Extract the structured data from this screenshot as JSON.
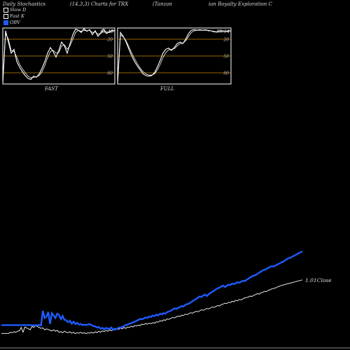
{
  "header": {
    "left": "Daily Stochastics",
    "mid": "(14,3,3) Charts for TRX",
    "right": "(Tanzan",
    "far_right": "ian  Royalty Exploration  C"
  },
  "legend": [
    {
      "label": "Slow D",
      "color": "#ffffff"
    },
    {
      "label": "Fast K",
      "color": "#ffffff"
    },
    {
      "label": "OBV",
      "color": "#1e5bff"
    }
  ],
  "panels": [
    {
      "name": "FAST",
      "label": "FAST",
      "last_value": "95.49"
    },
    {
      "name": "FULL",
      "label": "FULL",
      "last_value": "95.14"
    }
  ],
  "bottom": {
    "close_label": "1.01Close"
  },
  "colors": {
    "grid": "#c8860a",
    "obv": "#1e5bff",
    "price": "#ffffff"
  },
  "chart_data": [
    {
      "type": "line",
      "name": "fast-stochastics",
      "ylim": [
        0,
        100
      ],
      "gridlines": [
        20,
        50,
        80
      ],
      "tick_labels": [
        "80",
        "50",
        "20"
      ],
      "series": [
        {
          "values": [
            2,
            95,
            75,
            55,
            62,
            40,
            30,
            22,
            15,
            10,
            8,
            14,
            12,
            18,
            28,
            40,
            55,
            65,
            58,
            48,
            60,
            75,
            68,
            55,
            72,
            88,
            98,
            96,
            92,
            99,
            94,
            97,
            88,
            95,
            85,
            92,
            98,
            90,
            93,
            96,
            95
          ]
        },
        {
          "values": [
            2,
            90,
            80,
            60,
            58,
            48,
            35,
            27,
            20,
            14,
            11,
            12,
            13,
            15,
            22,
            33,
            47,
            58,
            60,
            55,
            56,
            68,
            70,
            62,
            68,
            80,
            92,
            96,
            94,
            96,
            95,
            96,
            92,
            93,
            89,
            90,
            94,
            93,
            92,
            94,
            95
          ]
        }
      ]
    },
    {
      "type": "line",
      "name": "full-stochastics",
      "ylim": [
        0,
        100
      ],
      "gridlines": [
        20,
        50,
        80
      ],
      "tick_labels": [
        "80",
        "50",
        "20"
      ],
      "series": [
        {
          "values": [
            2,
            92,
            85,
            75,
            62,
            50,
            40,
            32,
            25,
            18,
            15,
            14,
            15,
            20,
            30,
            42,
            55,
            62,
            64,
            60,
            65,
            72,
            75,
            72,
            80,
            90,
            96,
            97,
            96,
            97,
            96,
            97,
            95,
            95,
            93,
            93,
            95,
            95,
            94,
            95,
            95
          ]
        },
        {
          "values": [
            2,
            88,
            84,
            77,
            66,
            55,
            45,
            36,
            28,
            22,
            18,
            16,
            16,
            18,
            25,
            35,
            47,
            56,
            61,
            62,
            63,
            68,
            72,
            73,
            77,
            85,
            92,
            95,
            96,
            96,
            96,
            96,
            96,
            95,
            94,
            93,
            94,
            94,
            94,
            94,
            95
          ]
        }
      ]
    },
    {
      "type": "line",
      "name": "price-obv",
      "series": [
        {
          "name": "OBV",
          "values": [
            90,
            90,
            90,
            90,
            90,
            90,
            90,
            90,
            90,
            90,
            90,
            90,
            90,
            90,
            90,
            90,
            90,
            89,
            89,
            89,
            89,
            90,
            88,
            150,
            120,
            125,
            145,
            95,
            140,
            130,
            120,
            138,
            132,
            115,
            128,
            112,
            110,
            102,
            108,
            96,
            104,
            94,
            100,
            92,
            95,
            90,
            92,
            90,
            92,
            94,
            90,
            86,
            84,
            80,
            82,
            75,
            78,
            72,
            78,
            75,
            74,
            80,
            70,
            75,
            72,
            79,
            80,
            82,
            86,
            90,
            92,
            96,
            98,
            102,
            104,
            108,
            112,
            116,
            114,
            118,
            122,
            120,
            126,
            124,
            130,
            128,
            134,
            130,
            138,
            135,
            140,
            138,
            144,
            148,
            150,
            155,
            160,
            158,
            162,
            165,
            170,
            168,
            175,
            178,
            180,
            185,
            190,
            195,
            200,
            205,
            210,
            208,
            215,
            218,
            212,
            220,
            225,
            230,
            235,
            240,
            244,
            248,
            252,
            256,
            250,
            255,
            260,
            258,
            264,
            262,
            266,
            270,
            268,
            272,
            276,
            275,
            280,
            285,
            290,
            295,
            298,
            300,
            305,
            310,
            315,
            320,
            322,
            326,
            330,
            334,
            338,
            336,
            340,
            344,
            348,
            352,
            355,
            360,
            365,
            370,
            372,
            376,
            380,
            384,
            388,
            392,
            396,
            400
          ]
        },
        {
          "name": "Close",
          "values": [
            55,
            55,
            55,
            55,
            55,
            60,
            58,
            62,
            60,
            64,
            66,
            80,
            60,
            82,
            78,
            75,
            70,
            85,
            80,
            88,
            84,
            80,
            76,
            78,
            70,
            74,
            72,
            68,
            66,
            70,
            64,
            68,
            60,
            62,
            58,
            64,
            60,
            58,
            62,
            56,
            60,
            54,
            58,
            56,
            60,
            55,
            58,
            54,
            58,
            56,
            60,
            56,
            62,
            58,
            64,
            60,
            66,
            62,
            68,
            64,
            70,
            66,
            72,
            70,
            75,
            72,
            78,
            74,
            80,
            76,
            82,
            80,
            85,
            82,
            88,
            86,
            90,
            88,
            94,
            92,
            96,
            94,
            98,
            96,
            100,
            98,
            104,
            102,
            108,
            106,
            112,
            110,
            116,
            114,
            118,
            122,
            120,
            124,
            128,
            126,
            132,
            130,
            136,
            134,
            138,
            142,
            140,
            144,
            148,
            146,
            150,
            154,
            152,
            156,
            160,
            158,
            162,
            166,
            164,
            168,
            172,
            170,
            176,
            178,
            182,
            180,
            186,
            184,
            190,
            188,
            194,
            192,
            198,
            196,
            200,
            204,
            206,
            208,
            212,
            210,
            216,
            218,
            222,
            220,
            226,
            228,
            232,
            230,
            236,
            238,
            242,
            244,
            246,
            250,
            252,
            256,
            258,
            260,
            262,
            264,
            266,
            268,
            270,
            272,
            274,
            276,
            278,
            280
          ]
        }
      ]
    }
  ]
}
